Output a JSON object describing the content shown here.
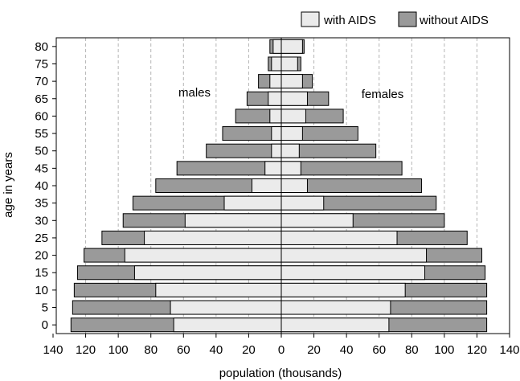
{
  "chart_data": {
    "type": "bar",
    "orientation": "horizontal-population-pyramid",
    "title": "",
    "xlabel": "population (thousands)",
    "ylabel": "age in years",
    "xlim": [
      -140,
      140
    ],
    "x_ticks": [
      -140,
      -120,
      -100,
      -80,
      -60,
      -40,
      -20,
      0,
      20,
      40,
      60,
      80,
      100,
      120,
      140
    ],
    "x_tick_labels": [
      "140",
      "120",
      "100",
      "80",
      "60",
      "40",
      "20",
      "0",
      "20",
      "40",
      "60",
      "80",
      "100",
      "120",
      "140"
    ],
    "categories": [
      "0",
      "5",
      "10",
      "15",
      "20",
      "25",
      "30",
      "35",
      "40",
      "45",
      "50",
      "55",
      "60",
      "65",
      "70",
      "75",
      "80"
    ],
    "grid": "vertical dashed",
    "legend_position": "top-right",
    "legend": [
      "with AIDS",
      "without AIDS"
    ],
    "annotations": [
      "males",
      "females"
    ],
    "series": [
      {
        "name": "with AIDS",
        "side": "males",
        "values": [
          66,
          68,
          77,
          90,
          96,
          84,
          59,
          35,
          18,
          10,
          6,
          6,
          7,
          8,
          7,
          6,
          5
        ]
      },
      {
        "name": "without AIDS",
        "side": "males",
        "values": [
          129,
          128,
          127,
          125,
          121,
          110,
          97,
          91,
          77,
          64,
          46,
          36,
          28,
          21,
          14,
          8,
          7
        ]
      },
      {
        "name": "with AIDS",
        "side": "females",
        "values": [
          66,
          67,
          76,
          88,
          89,
          71,
          44,
          26,
          16,
          12,
          11,
          13,
          15,
          16,
          13,
          10,
          13
        ]
      },
      {
        "name": "without AIDS",
        "side": "females",
        "values": [
          126,
          126,
          126,
          125,
          123,
          114,
          100,
          95,
          86,
          74,
          58,
          47,
          38,
          29,
          19,
          12,
          14
        ]
      }
    ],
    "colors": {
      "with_aids": "#ebebeb",
      "without_aids": "#9a9a9a",
      "outline": "#000000",
      "grid": "#b5b5b5"
    }
  }
}
